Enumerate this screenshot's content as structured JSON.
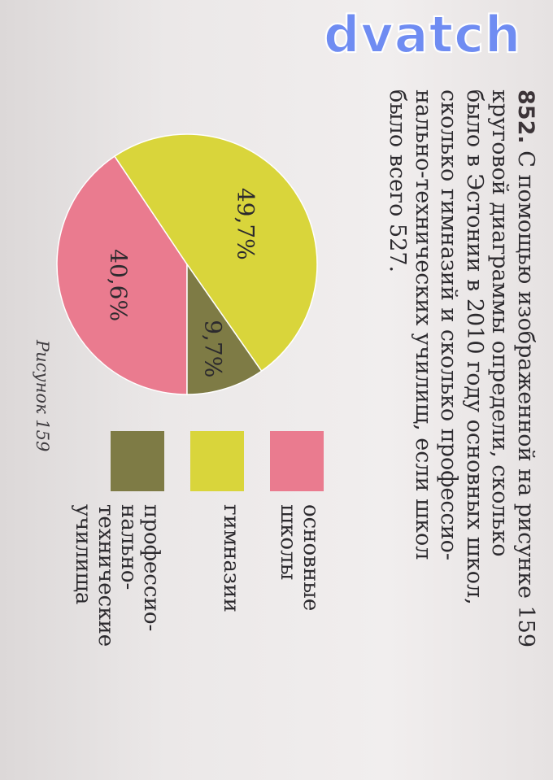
{
  "watermark": "dvatch",
  "problem": {
    "number": "852.",
    "lines": [
      "С помощью изображенной на рисунке 159",
      "круговой диаграммы определи, сколько",
      "было в Эстонии в 2010 году основных школ,",
      "сколько гимназий и сколько профессио-",
      "нально-технических училищ, если школ",
      "было всего 527."
    ]
  },
  "figure": {
    "caption": "Рисунок 159"
  },
  "legend": [
    {
      "label": "основные\nшколы",
      "color": "#ea7b8f"
    },
    {
      "label": "гимназии",
      "color": "#d9d53b"
    },
    {
      "label": "профессио-\nнально-\nтехнические\nучилища",
      "color": "#7e7b45"
    }
  ],
  "chart_data": {
    "type": "pie",
    "slices": [
      {
        "category": "основные школы",
        "value": 40.6,
        "label": "40,6%",
        "color": "#ea7b8f"
      },
      {
        "category": "гимназии",
        "value": 49.7,
        "label": "49,7%",
        "color": "#d9d53b"
      },
      {
        "category": "профессионально-технические училища",
        "value": 9.7,
        "label": "9,7%",
        "color": "#7e7b45"
      }
    ]
  }
}
